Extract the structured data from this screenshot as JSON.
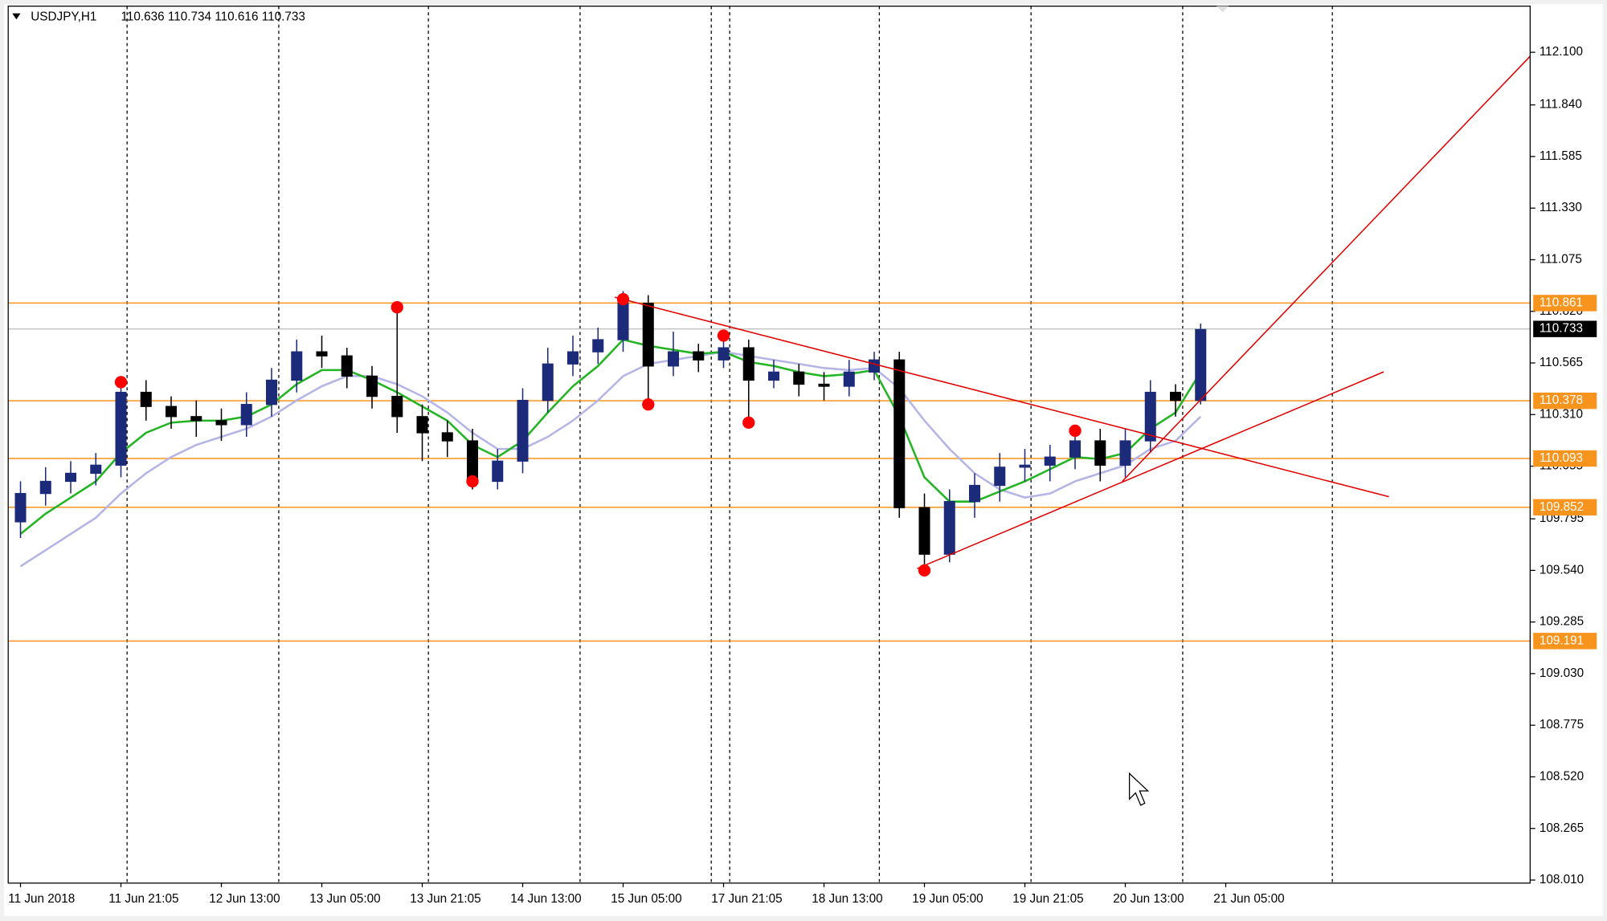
{
  "chart_data": {
    "type": "candlestick",
    "title": "USDJPY,H1",
    "subtitle": "110.636 110.734 110.616 110.733",
    "ylim": [
      107.995,
      112.328
    ],
    "yticks": [
      {
        "value": 112.1,
        "label": "112.100"
      },
      {
        "value": 111.84,
        "label": "111.840"
      },
      111.585,
      {
        "value": 111.33,
        "label": "111.330"
      },
      111.075,
      {
        "value": 110.82,
        "label": "110.820"
      },
      110.565,
      {
        "value": 110.31,
        "label": "110.310"
      },
      110.055,
      109.795,
      {
        "value": 109.54,
        "label": "109.540"
      },
      109.285,
      {
        "value": 109.03,
        "label": "109.030"
      },
      108.775,
      {
        "value": 108.52,
        "label": "108.520"
      },
      108.265,
      {
        "value": 108.01,
        "label": "108.010"
      }
    ],
    "xticks": [
      {
        "value": 0,
        "label": "11 Jun 2018"
      },
      {
        "value": 4,
        "label": "11 Jun 21:05"
      },
      {
        "value": 8,
        "label": "12 Jun 13:00"
      },
      {
        "value": 12,
        "label": "13 Jun 05:00"
      },
      {
        "value": 16,
        "label": "13 Jun 21:05"
      },
      {
        "value": 20,
        "label": "14 Jun 13:00"
      },
      {
        "value": 24,
        "label": "15 Jun 05:00"
      },
      {
        "value": 28,
        "label": "17 Jun 21:05"
      },
      {
        "value": 32,
        "label": "18 Jun 13:00"
      },
      {
        "value": 36,
        "label": "19 Jun 05:00"
      },
      {
        "value": 40,
        "label": "19 Jun 21:05"
      },
      {
        "value": 44,
        "label": "20 Jun 13:00"
      },
      {
        "value": 48,
        "label": "21 Jun 05:00"
      }
    ],
    "up_color": "#1c2a7a",
    "down_color": "#000000",
    "open": [
      109.78,
      109.92,
      109.98,
      110.02,
      110.06,
      110.42,
      110.35,
      110.3,
      110.28,
      110.26,
      110.36,
      110.48,
      110.62,
      110.6,
      110.5,
      110.4,
      110.3,
      110.22,
      110.18,
      109.98,
      110.08,
      110.38,
      110.56,
      110.62,
      110.68,
      110.86,
      110.55,
      110.62,
      110.58,
      110.64,
      110.48,
      110.52,
      110.46,
      110.45,
      110.52,
      110.58,
      109.85,
      109.62,
      109.88,
      109.96,
      110.05,
      110.06,
      110.1,
      110.18,
      110.06,
      110.18,
      110.42,
      110.38
    ],
    "high": [
      109.98,
      110.05,
      110.08,
      110.12,
      110.5,
      110.48,
      110.4,
      110.38,
      110.34,
      110.42,
      110.54,
      110.68,
      110.7,
      110.64,
      110.55,
      110.86,
      110.36,
      110.28,
      110.24,
      110.14,
      110.44,
      110.64,
      110.7,
      110.74,
      110.92,
      110.9,
      110.72,
      110.66,
      110.7,
      110.68,
      110.58,
      110.56,
      110.52,
      110.58,
      110.62,
      110.62,
      109.92,
      109.94,
      110.02,
      110.12,
      110.14,
      110.16,
      110.22,
      110.24,
      110.24,
      110.48,
      110.46,
      110.76
    ],
    "low": [
      109.7,
      109.86,
      109.92,
      109.96,
      110.0,
      110.28,
      110.24,
      110.2,
      110.18,
      110.2,
      110.3,
      110.42,
      110.54,
      110.44,
      110.34,
      110.22,
      110.08,
      110.1,
      109.94,
      109.94,
      110.02,
      110.32,
      110.5,
      110.56,
      110.62,
      110.36,
      110.5,
      110.52,
      110.54,
      110.26,
      110.44,
      110.4,
      110.38,
      110.4,
      110.48,
      109.8,
      109.54,
      109.58,
      109.8,
      109.88,
      109.98,
      109.98,
      110.04,
      109.98,
      110.0,
      110.12,
      110.3,
      110.36
    ],
    "close": [
      109.92,
      109.98,
      110.02,
      110.06,
      110.42,
      110.35,
      110.3,
      110.28,
      110.26,
      110.36,
      110.48,
      110.62,
      110.6,
      110.5,
      110.4,
      110.3,
      110.22,
      110.18,
      109.98,
      110.08,
      110.38,
      110.56,
      110.62,
      110.68,
      110.86,
      110.55,
      110.62,
      110.58,
      110.64,
      110.48,
      110.52,
      110.46,
      110.45,
      110.52,
      110.58,
      109.85,
      109.62,
      109.88,
      109.96,
      110.05,
      110.06,
      110.1,
      110.18,
      110.06,
      110.18,
      110.42,
      110.38,
      110.73
    ],
    "moving_averages": [
      {
        "color": "#b4b4e6",
        "values": [
          109.56,
          109.64,
          109.72,
          109.8,
          109.92,
          110.02,
          110.1,
          110.16,
          110.2,
          110.24,
          110.3,
          110.38,
          110.45,
          110.5,
          110.5,
          110.46,
          110.4,
          110.32,
          110.22,
          110.14,
          110.14,
          110.2,
          110.28,
          110.38,
          110.5,
          110.56,
          110.58,
          110.6,
          110.62,
          110.6,
          110.58,
          110.56,
          110.54,
          110.53,
          110.54,
          110.44,
          110.28,
          110.14,
          110.02,
          109.94,
          109.9,
          109.92,
          109.98,
          110.02,
          110.06,
          110.14,
          110.18,
          110.3
        ]
      },
      {
        "color": "#22b422",
        "values": [
          109.72,
          109.82,
          109.9,
          109.98,
          110.12,
          110.22,
          110.27,
          110.28,
          110.28,
          110.3,
          110.36,
          110.46,
          110.53,
          110.53,
          110.48,
          110.42,
          110.35,
          110.28,
          110.16,
          110.1,
          110.18,
          110.32,
          110.45,
          110.55,
          110.68,
          110.65,
          110.63,
          110.61,
          110.62,
          110.57,
          110.55,
          110.52,
          110.5,
          110.51,
          110.53,
          110.3,
          110.0,
          109.88,
          109.88,
          109.93,
          109.98,
          110.04,
          110.1,
          110.09,
          110.12,
          110.24,
          110.32,
          110.52
        ]
      }
    ],
    "markers": {
      "color": "#ff0000",
      "x": [
        4,
        15,
        18,
        24,
        25,
        28,
        29,
        36,
        42
      ],
      "y": [
        110.47,
        110.84,
        109.98,
        110.88,
        110.36,
        110.7,
        110.27,
        109.54,
        110.23
      ]
    },
    "trendlines": [
      {
        "color": "#e00000",
        "x": [
          23.67,
          54.5
        ],
        "y": [
          110.89,
          109.904
        ]
      },
      {
        "color": "#e00000",
        "x": [
          35.71,
          54.29
        ],
        "y": [
          109.549,
          110.521
        ]
      },
      {
        "color": "#e00000",
        "x": [
          43.88,
          60.12
        ],
        "y": [
          109.98,
          112.08
        ]
      }
    ],
    "levels": {
      "color": "#f7941d",
      "values": [
        110.861,
        110.378,
        110.093,
        109.852,
        109.191
      ]
    },
    "current_price": {
      "color": "#c0c0c0",
      "value": 110.733
    }
  }
}
